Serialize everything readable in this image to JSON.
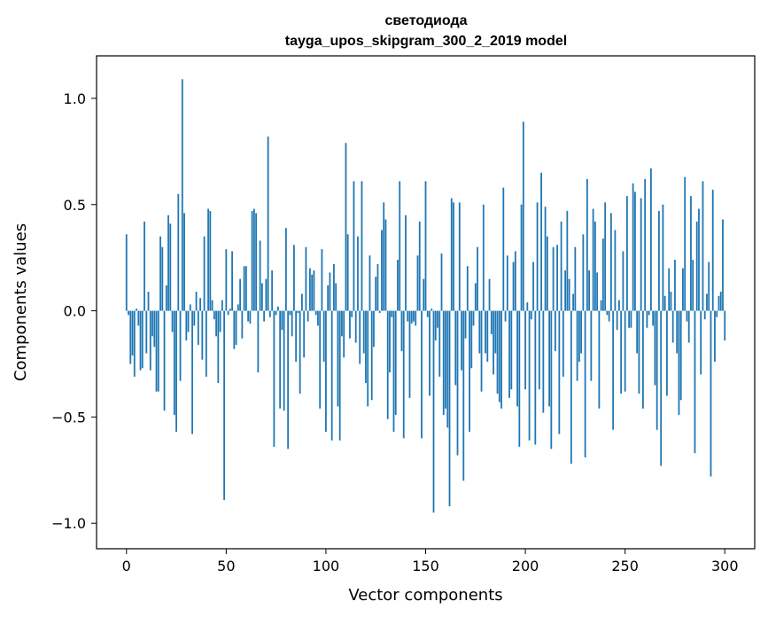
{
  "chart_data": {
    "type": "bar",
    "title": "светодиода",
    "subtitle": "tayga_upos_skipgram_300_2_2019 model",
    "xlabel": "Vector components",
    "ylabel": "Components values",
    "xlim": [
      -15,
      315
    ],
    "ylim": [
      -1.12,
      1.2
    ],
    "xticks": [
      0,
      50,
      100,
      150,
      200,
      250,
      300
    ],
    "yticks": [
      -1.0,
      -0.5,
      0.0,
      0.5,
      1.0
    ],
    "xtick_labels": [
      "0",
      "50",
      "100",
      "150",
      "200",
      "250",
      "300"
    ],
    "ytick_labels": [
      "−1.0",
      "−0.5",
      "0.0",
      "0.5",
      "1.0"
    ],
    "bar_color": "#1f77b4",
    "grid": false,
    "x_start": 0,
    "values": [
      0.36,
      -0.02,
      -0.25,
      -0.21,
      -0.31,
      0.01,
      -0.07,
      -0.28,
      -0.27,
      0.42,
      -0.2,
      0.09,
      -0.28,
      -0.12,
      -0.17,
      -0.38,
      -0.38,
      0.35,
      0.3,
      -0.47,
      0.12,
      0.45,
      0.41,
      -0.1,
      -0.49,
      -0.57,
      0.55,
      -0.33,
      1.09,
      0.46,
      -0.14,
      -0.1,
      0.03,
      -0.58,
      -0.07,
      0.09,
      -0.16,
      0.06,
      -0.23,
      0.35,
      -0.31,
      0.48,
      0.47,
      0.05,
      -0.04,
      -0.12,
      -0.34,
      -0.1,
      0.05,
      -0.89,
      0.29,
      -0.02,
      0.01,
      0.28,
      -0.18,
      -0.16,
      0.03,
      0.15,
      -0.13,
      0.21,
      0.21,
      -0.05,
      -0.06,
      0.47,
      0.48,
      0.46,
      -0.29,
      0.33,
      0.13,
      -0.05,
      0.15,
      0.82,
      -0.03,
      0.19,
      -0.64,
      -0.02,
      0.02,
      -0.46,
      -0.09,
      -0.47,
      0.39,
      -0.65,
      -0.02,
      -0.12,
      0.31,
      -0.24,
      -0.01,
      -0.39,
      0.08,
      -0.22,
      0.3,
      -0.05,
      0.2,
      0.17,
      0.19,
      -0.02,
      -0.07,
      -0.46,
      0.29,
      -0.24,
      -0.57,
      0.12,
      0.18,
      -0.61,
      0.22,
      0.13,
      -0.45,
      -0.61,
      -0.12,
      -0.22,
      0.79,
      0.36,
      -0.13,
      -0.03,
      0.61,
      -0.15,
      0.35,
      -0.25,
      0.61,
      -0.2,
      -0.34,
      -0.45,
      0.26,
      -0.42,
      -0.17,
      0.16,
      0.22,
      -0.01,
      0.38,
      0.51,
      0.43,
      -0.51,
      -0.29,
      -0.03,
      -0.57,
      -0.49,
      0.24,
      0.61,
      -0.19,
      -0.6,
      0.45,
      -0.05,
      -0.41,
      -0.06,
      -0.05,
      -0.07,
      0.26,
      0.42,
      -0.6,
      0.15,
      0.61,
      -0.03,
      -0.4,
      0.01,
      -0.95,
      -0.14,
      -0.08,
      -0.31,
      0.27,
      -0.49,
      -0.46,
      -0.55,
      -0.92,
      0.53,
      0.51,
      -0.35,
      -0.68,
      0.51,
      -0.28,
      -0.8,
      -0.13,
      0.21,
      -0.57,
      -0.27,
      -0.07,
      0.13,
      0.3,
      -0.2,
      -0.38,
      0.5,
      -0.2,
      -0.24,
      0.15,
      -0.11,
      -0.3,
      -0.2,
      -0.39,
      -0.43,
      -0.46,
      0.58,
      -0.05,
      0.26,
      -0.41,
      -0.37,
      0.23,
      0.28,
      -0.45,
      -0.64,
      0.5,
      0.89,
      -0.37,
      0.04,
      -0.61,
      -0.04,
      0.23,
      -0.63,
      0.51,
      -0.37,
      0.65,
      -0.48,
      0.49,
      0.35,
      -0.45,
      -0.65,
      0.3,
      -0.19,
      0.31,
      -0.58,
      0.42,
      -0.31,
      0.19,
      0.47,
      0.15,
      -0.72,
      0.08,
      0.3,
      -0.33,
      -0.24,
      -0.2,
      0.36,
      -0.69,
      0.62,
      0.19,
      -0.33,
      0.48,
      0.42,
      0.18,
      -0.46,
      0.05,
      0.34,
      0.51,
      -0.02,
      -0.05,
      0.46,
      -0.56,
      0.38,
      -0.09,
      0.05,
      -0.39,
      0.28,
      -0.38,
      0.54,
      -0.08,
      -0.08,
      0.6,
      0.56,
      -0.2,
      -0.39,
      0.53,
      -0.46,
      0.62,
      -0.08,
      -0.02,
      0.67,
      -0.07,
      -0.35,
      -0.56,
      0.47,
      -0.73,
      0.5,
      0.07,
      -0.4,
      0.2,
      0.09,
      -0.15,
      0.24,
      -0.2,
      -0.49,
      -0.42,
      0.2,
      0.63,
      -0.05,
      -0.15,
      0.54,
      0.24,
      -0.67,
      0.42,
      0.48,
      -0.3,
      0.61,
      -0.04,
      0.08,
      0.23,
      -0.78,
      0.57,
      -0.24,
      -0.03,
      0.07,
      0.09,
      0.43,
      -0.14
    ]
  }
}
